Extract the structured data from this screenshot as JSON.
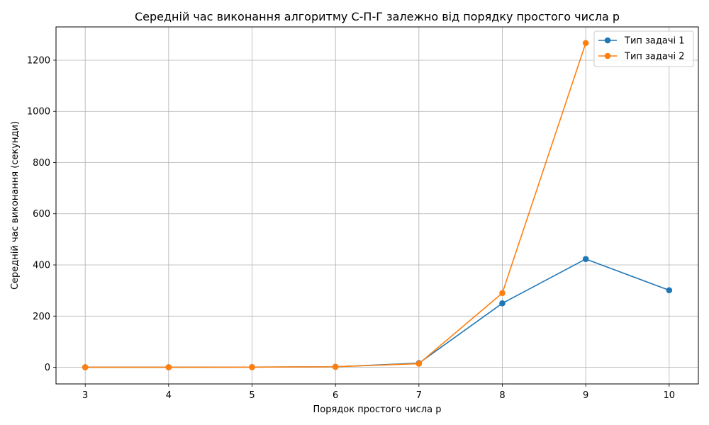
{
  "chart_data": {
    "type": "line",
    "title": "Середній час виконання алгоритму С-П-Г залежно від порядку простого числа p",
    "xlabel": "Порядок простого числа p",
    "ylabel": "Середній час виконання (секунди)",
    "xlim": [
      2.65,
      10.35
    ],
    "ylim": [
      -65,
      1330
    ],
    "xticks": [
      3,
      4,
      5,
      6,
      7,
      8,
      9,
      10
    ],
    "yticks": [
      0,
      200,
      400,
      600,
      800,
      1000,
      1200
    ],
    "grid": true,
    "legend_position": "top-right",
    "series": [
      {
        "name": "Тип задачі 1",
        "color": "#1f77b4",
        "x": [
          3,
          4,
          5,
          6,
          7,
          8,
          9,
          10
        ],
        "y": [
          0.1,
          0.3,
          0.6,
          2,
          16,
          250,
          423,
          301
        ]
      },
      {
        "name": "Тип задачі 2",
        "color": "#ff7f0e",
        "x": [
          3,
          4,
          5,
          6,
          7,
          8,
          9
        ],
        "y": [
          0.1,
          0.2,
          0.5,
          2,
          14,
          290,
          1267
        ]
      }
    ]
  }
}
